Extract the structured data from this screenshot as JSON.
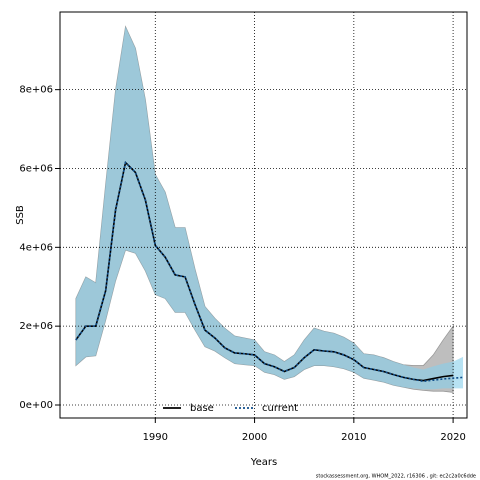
{
  "chart_data": {
    "type": "line",
    "xlabel": "Years",
    "ylabel": "SSB",
    "footnote": "stockassessment.org, WHOM_2022, r16306 , git: ec2c2a0c6dde",
    "x": [
      1982,
      1983,
      1984,
      1985,
      1986,
      1987,
      1988,
      1989,
      1990,
      1991,
      1992,
      1993,
      1994,
      1995,
      1996,
      1997,
      1998,
      1999,
      2000,
      2001,
      2002,
      2003,
      2004,
      2005,
      2006,
      2007,
      2008,
      2009,
      2010,
      2011,
      2012,
      2013,
      2014,
      2015,
      2016,
      2017,
      2018,
      2019,
      2020,
      2021
    ],
    "xlim": [
      1980.4,
      2021.4
    ],
    "xticks": [
      1990,
      2000,
      2010,
      2020
    ],
    "ylim": [
      -330000,
      9970000
    ],
    "yticks": [
      {
        "value": 0,
        "label": "0e+00"
      },
      {
        "value": 2000000,
        "label": "2e+06"
      },
      {
        "value": 4000000,
        "label": "4e+06"
      },
      {
        "value": 6000000,
        "label": "6e+06"
      },
      {
        "value": 8000000,
        "label": "8e+06"
      }
    ],
    "grid": true,
    "legend": "bottom",
    "series": [
      {
        "name": "base",
        "color": "#000000",
        "band_color": "#bebebe",
        "dash": "solid",
        "values": [
          1650000,
          2000000,
          2000000,
          2900000,
          4950000,
          6150000,
          5900000,
          5200000,
          4050000,
          3750000,
          3300000,
          3250000,
          2550000,
          1900000,
          1700000,
          1450000,
          1320000,
          1300000,
          1270000,
          1050000,
          970000,
          850000,
          950000,
          1200000,
          1400000,
          1370000,
          1350000,
          1270000,
          1150000,
          950000,
          900000,
          850000,
          770000,
          700000,
          650000,
          620000,
          670000,
          720000,
          750000,
          null
        ],
        "upper": [
          2700000,
          3250000,
          3100000,
          5600000,
          8000000,
          9600000,
          9050000,
          7750000,
          5850000,
          5400000,
          4500000,
          4500000,
          3450000,
          2500000,
          2200000,
          1950000,
          1750000,
          1700000,
          1650000,
          1350000,
          1270000,
          1100000,
          1270000,
          1650000,
          1950000,
          1870000,
          1820000,
          1720000,
          1570000,
          1300000,
          1270000,
          1200000,
          1100000,
          1020000,
          1000000,
          1000000,
          1270000,
          1650000,
          2000000,
          null
        ],
        "lower": [
          1000000,
          1220000,
          1250000,
          2150000,
          3150000,
          3930000,
          3850000,
          3400000,
          2800000,
          2700000,
          2350000,
          2350000,
          1900000,
          1480000,
          1370000,
          1200000,
          1050000,
          1020000,
          1000000,
          830000,
          770000,
          650000,
          720000,
          900000,
          1000000,
          1000000,
          970000,
          920000,
          830000,
          680000,
          630000,
          580000,
          500000,
          450000,
          400000,
          370000,
          350000,
          350000,
          320000,
          null
        ]
      },
      {
        "name": "current",
        "color": "#104e8b",
        "band_color": "#87ceeb",
        "dash": "dotted",
        "values": [
          1650000,
          2000000,
          2000000,
          2900000,
          4950000,
          6150000,
          5900000,
          5200000,
          4050000,
          3750000,
          3300000,
          3250000,
          2550000,
          1900000,
          1700000,
          1450000,
          1320000,
          1300000,
          1270000,
          1050000,
          970000,
          850000,
          950000,
          1200000,
          1400000,
          1370000,
          1350000,
          1270000,
          1150000,
          950000,
          900000,
          850000,
          770000,
          700000,
          650000,
          600000,
          630000,
          660000,
          680000,
          700000
        ],
        "upper": [
          2700000,
          3250000,
          3100000,
          5600000,
          8000000,
          9600000,
          9050000,
          7750000,
          5850000,
          5400000,
          4500000,
          4500000,
          3450000,
          2500000,
          2200000,
          1950000,
          1750000,
          1700000,
          1650000,
          1350000,
          1270000,
          1100000,
          1270000,
          1650000,
          1950000,
          1870000,
          1820000,
          1720000,
          1570000,
          1300000,
          1270000,
          1200000,
          1100000,
          1020000,
          950000,
          900000,
          980000,
          1050000,
          1100000,
          1220000
        ],
        "lower": [
          1000000,
          1220000,
          1250000,
          2150000,
          3150000,
          3930000,
          3850000,
          3400000,
          2800000,
          2700000,
          2350000,
          2350000,
          1900000,
          1480000,
          1370000,
          1200000,
          1050000,
          1020000,
          1000000,
          830000,
          770000,
          650000,
          720000,
          900000,
          1000000,
          1000000,
          970000,
          920000,
          830000,
          680000,
          630000,
          580000,
          500000,
          450000,
          420000,
          400000,
          400000,
          420000,
          420000,
          420000
        ]
      }
    ]
  }
}
